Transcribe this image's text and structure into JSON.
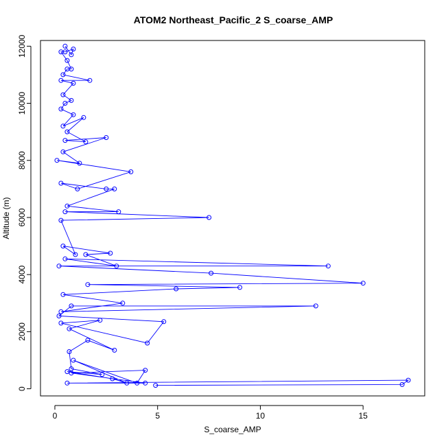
{
  "chart_data": {
    "type": "line",
    "title": "ATOM2 Northeast_Pacific_2 S_coarse_AMP",
    "xlabel": "S_coarse_AMP",
    "ylabel": "Altitude (m)",
    "xlim": [
      -0.7,
      18
    ],
    "ylim": [
      -250,
      12200
    ],
    "xticks": [
      0,
      5,
      10,
      15
    ],
    "yticks": [
      0,
      2000,
      4000,
      6000,
      8000,
      10000,
      12000
    ],
    "series": [
      {
        "color": "#0000ff",
        "marker": "open-circle",
        "x": [
          4.9,
          16.9,
          17.2,
          0.6,
          4.4,
          0.8,
          4.4,
          4.0,
          0.9,
          3.5,
          2.8,
          0.6,
          2.3,
          0.8,
          0.7,
          1.6,
          2.9,
          0.7,
          2.2,
          0.3,
          4.5,
          5.3,
          0.2,
          0.8,
          12.7,
          0.3,
          3.3,
          0.4,
          5.9,
          9.0,
          1.6,
          15.0,
          7.6,
          0.2,
          13.3,
          0.5,
          3.0,
          1.5,
          2.7,
          0.4,
          1.0,
          0.3,
          7.5,
          0.5,
          3.1,
          0.6,
          2.9,
          2.5,
          0.3,
          1.1,
          3.7,
          0.1,
          1.2,
          0.4,
          2.5,
          0.5,
          1.5,
          0.6,
          1.4,
          0.4,
          0.9,
          0.3,
          0.5,
          0.8,
          0.4,
          0.9,
          0.3,
          1.7,
          0.4,
          0.6,
          0.8,
          0.6,
          0.3,
          0.5,
          0.9,
          0.8,
          0.5
        ],
        "y": [
          120,
          150,
          300,
          200,
          200,
          550,
          650,
          200,
          1000,
          200,
          350,
          600,
          500,
          700,
          1300,
          1700,
          1350,
          2100,
          2400,
          2300,
          1600,
          2350,
          2550,
          2900,
          2900,
          2700,
          3000,
          3300,
          3500,
          3550,
          3650,
          3700,
          4050,
          4300,
          4300,
          4550,
          4300,
          4700,
          4750,
          5000,
          4700,
          5900,
          6000,
          6200,
          6200,
          6400,
          7000,
          7000,
          7200,
          7000,
          7600,
          8000,
          7900,
          8300,
          8800,
          8700,
          8650,
          9000,
          9500,
          9200,
          9600,
          9800,
          10000,
          10100,
          10300,
          10700,
          10800,
          10800,
          11000,
          11200,
          11200,
          11500,
          11800,
          11800,
          11900,
          11700,
          12000
        ]
      }
    ]
  }
}
